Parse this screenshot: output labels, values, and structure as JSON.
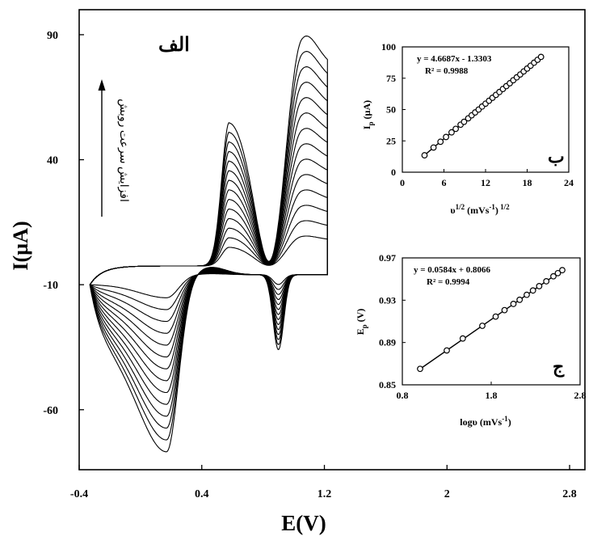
{
  "chart_data": [
    {
      "id": "main",
      "type": "line",
      "panel_label": "الف",
      "xlabel": "E(V)",
      "ylabel": "I(µA)",
      "x_ticks": [
        -0.4,
        0.4,
        1.2,
        2,
        2.8
      ],
      "x_tick_labels": [
        "-0.4",
        "0.4",
        "1.2",
        "2",
        "2.8"
      ],
      "y_ticks": [
        90,
        40,
        -10,
        -60
      ],
      "y_tick_labels": [
        "90",
        "40",
        "-10",
        "-60"
      ],
      "xlim": [
        -0.4,
        2.9
      ],
      "ylim": [
        -84,
        100
      ],
      "annotation": "افزایش سرعت روبش",
      "cv_curves": {
        "count": 14,
        "e_start": -0.33,
        "e_vertex": 1.22,
        "scale_min": 0.13,
        "scale_max": 1.0,
        "baseline_forward": -2.5,
        "baseline_reverse": -6,
        "anodic_peak_1": {
          "e": 0.58,
          "i": 55,
          "width": 0.05
        },
        "anodic_peak_2": {
          "e": 1.05,
          "i": 78,
          "width": 0.1
        },
        "forward_valley": {
          "e": 0.86,
          "i": -9
        },
        "cathodic_peak_1": {
          "e": 0.9,
          "i": -36,
          "width": 0.035
        },
        "cathodic_peak_2": {
          "e": 0.17,
          "i": -77,
          "width": 0.11
        },
        "reverse_bump": {
          "e": 0.46,
          "i": 3,
          "width": 0.1
        },
        "vertex_current": 58,
        "start_current": -10
      }
    },
    {
      "id": "inset-b",
      "type": "scatter",
      "panel_label": "ب",
      "xlabel": "υ1/2 (mVs-1) 1/2",
      "ylabel": "Ip (µA)",
      "xlim": [
        0,
        24
      ],
      "ylim": [
        0,
        100
      ],
      "x_ticks": [
        0,
        6,
        12,
        18,
        24
      ],
      "x_tick_labels": [
        "0",
        "6",
        "12",
        "18",
        "24"
      ],
      "y_ticks": [
        0,
        25,
        50,
        75,
        100
      ],
      "y_tick_labels": [
        "0",
        "25",
        "50",
        "75",
        "100"
      ],
      "equation": "y = 4.6687x - 1.3303",
      "r2": "R² = 0.9988",
      "fit": {
        "slope": 4.6687,
        "intercept": -1.3303,
        "x_range": [
          3.2,
          20
        ]
      },
      "x": [
        3.2,
        4.5,
        5.5,
        6.3,
        7.1,
        7.7,
        8.4,
        8.9,
        9.5,
        10.0,
        10.5,
        11.0,
        11.5,
        12.0,
        12.5,
        13.0,
        13.5,
        14.0,
        14.5,
        15.0,
        15.5,
        16.0,
        16.5,
        17.0,
        17.5,
        18.0,
        18.5,
        19.0,
        19.5,
        20.0
      ],
      "y": [
        13.5,
        19.7,
        24.3,
        28.1,
        31.8,
        34.6,
        37.9,
        40.2,
        43.0,
        45.4,
        47.7,
        50.0,
        52.4,
        54.7,
        57.0,
        59.4,
        61.7,
        64.0,
        66.4,
        68.7,
        71.0,
        73.4,
        75.7,
        78.0,
        80.4,
        82.7,
        85.0,
        87.4,
        89.7,
        92.0
      ]
    },
    {
      "id": "inset-c",
      "type": "scatter",
      "panel_label": "ج",
      "xlabel": "logυ (mVs-1)",
      "ylabel": "Ep (V)",
      "xlim": [
        0.8,
        2.8
      ],
      "ylim": [
        0.85,
        0.97
      ],
      "x_ticks": [
        0.8,
        1.8,
        2.8
      ],
      "x_tick_labels": [
        "0.8",
        "1.8",
        "2.8"
      ],
      "y_ticks": [
        0.85,
        0.89,
        0.93,
        0.97
      ],
      "y_tick_labels": [
        "0.85",
        "0.89",
        "0.93",
        "0.97"
      ],
      "equation": "y = 0.0584x + 0.8066",
      "r2": "R² = 0.9994",
      "fit": {
        "slope": 0.0584,
        "intercept": 0.8066,
        "x_range": [
          1.0,
          2.6
        ]
      },
      "x": [
        1.0,
        1.3,
        1.48,
        1.7,
        1.85,
        1.95,
        2.05,
        2.12,
        2.2,
        2.27,
        2.34,
        2.42,
        2.5,
        2.55,
        2.6
      ],
      "y": [
        0.8651,
        0.8825,
        0.8938,
        0.9058,
        0.9145,
        0.9206,
        0.9265,
        0.9304,
        0.9351,
        0.9392,
        0.9433,
        0.9479,
        0.9526,
        0.9556,
        0.9584
      ]
    }
  ]
}
